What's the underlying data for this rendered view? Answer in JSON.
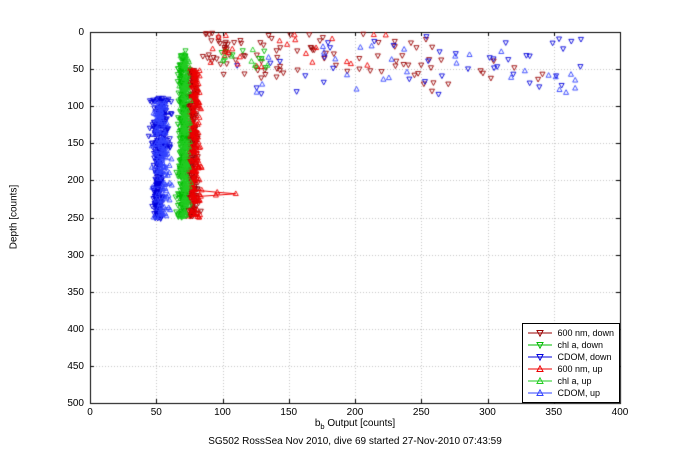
{
  "figure": {
    "title": "SG502 RossSea Nov 2010, dive 69 started 27-Nov-2010 07:43:59",
    "xlabel_pre": "b",
    "xlabel_sub": "b",
    "xlabel_post": " Output [counts]",
    "ylabel": "Depth [counts]"
  },
  "chart_data": {
    "type": "scatter",
    "title": "SG502 RossSea Nov 2010, dive 69 started 27-Nov-2010 07:43:59",
    "xlabel": "b_b Output [counts]",
    "ylabel": "Depth [counts]",
    "xlim": [
      0,
      400
    ],
    "ylim": [
      0,
      500
    ],
    "y_inverted": true,
    "xticks": [
      0,
      50,
      100,
      150,
      200,
      250,
      300,
      350,
      400
    ],
    "yticks": [
      0,
      50,
      100,
      150,
      200,
      250,
      300,
      350,
      400,
      450,
      500
    ],
    "grid": true,
    "grid_color": "#c6c6c6",
    "axes_color": "#000000",
    "legend_position": "bottom-right",
    "seed": 42,
    "series": [
      {
        "name": "600 nm, down",
        "color": "#990000",
        "marker": "v",
        "clusters": [
          {
            "n": 220,
            "x_mean": 77,
            "x_sd": 2.2,
            "y_min": 45,
            "y_max": 250,
            "line": true
          },
          {
            "n": 85,
            "x_min": 85,
            "x_max": 265,
            "x_pow": 1.6,
            "y_min": 0,
            "y_max": 62
          },
          {
            "n": 14,
            "x_min": 250,
            "x_max": 345,
            "y_min": 35,
            "y_max": 80
          }
        ]
      },
      {
        "name": "chl a, down",
        "color": "#00bb00",
        "marker": "v",
        "clusters": [
          {
            "n": 260,
            "x_mean": 70,
            "x_sd": 1.8,
            "y_min": 25,
            "y_max": 250,
            "line": true
          },
          {
            "n": 10,
            "x_min": 98,
            "x_max": 142,
            "y_min": 22,
            "y_max": 48
          }
        ]
      },
      {
        "name": "CDOM, down",
        "color": "#0000dd",
        "marker": "v",
        "clusters": [
          {
            "n": 120,
            "x_mean": 53,
            "x_sd": 3.8,
            "y_min": 88,
            "y_max": 165,
            "line": true
          },
          {
            "n": 150,
            "x_mean": 51.5,
            "x_sd": 1.8,
            "y_min": 160,
            "y_max": 252,
            "line": true
          },
          {
            "n": 42,
            "x_min": 105,
            "x_max": 375,
            "x_pow": 0.85,
            "y_min": 5,
            "y_max": 88
          }
        ]
      },
      {
        "name": "600 nm, up",
        "color": "#ee0000",
        "marker": "^",
        "clusters": [
          {
            "n": 160,
            "x_mean": 79,
            "x_sd": 2.2,
            "y_min": 48,
            "y_max": 250,
            "line": true
          },
          {
            "n": 26,
            "x_min": 88,
            "x_max": 225,
            "x_pow": 1.5,
            "y_min": 0,
            "y_max": 52
          }
        ],
        "spike": [
          [
            79,
            213
          ],
          [
            96,
            216
          ],
          [
            110,
            218
          ],
          [
            95,
            220
          ],
          [
            79,
            222
          ]
        ]
      },
      {
        "name": "chl a, up",
        "color": "#22cc22",
        "marker": "^",
        "clusters": [
          {
            "n": 170,
            "x_mean": 72,
            "x_sd": 1.7,
            "y_min": 28,
            "y_max": 250,
            "line": true
          },
          {
            "n": 8,
            "x_min": 100,
            "x_max": 138,
            "y_min": 24,
            "y_max": 46
          }
        ]
      },
      {
        "name": "CDOM, up",
        "color": "#3344ff",
        "marker": "^",
        "clusters": [
          {
            "n": 130,
            "x_mean": 54,
            "x_sd": 3.2,
            "y_min": 92,
            "y_max": 250,
            "line": true
          },
          {
            "n": 28,
            "x_min": 118,
            "x_max": 372,
            "x_pow": 0.9,
            "y_min": 8,
            "y_max": 82
          }
        ]
      }
    ]
  }
}
